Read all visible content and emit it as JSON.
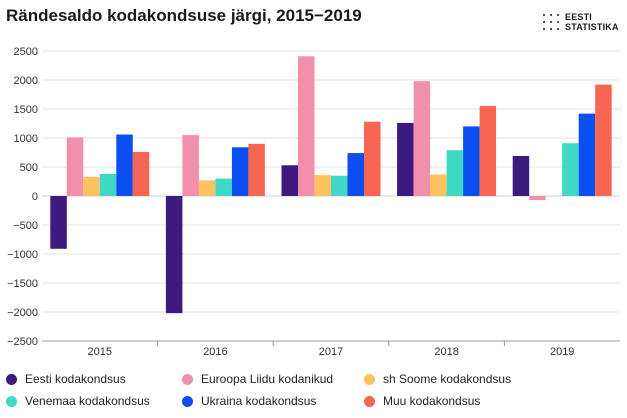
{
  "logo": {
    "line1": "EESTI",
    "line2": "STATISTIKA"
  },
  "chart_data": {
    "type": "bar",
    "title": "Rändesaldo kodakondsuse järgi, 2015−2019",
    "xlabel": "",
    "ylabel": "",
    "categories": [
      "2015",
      "2016",
      "2017",
      "2018",
      "2019"
    ],
    "ylim": [
      -2500,
      2500
    ],
    "yticks": [
      -2500,
      -2000,
      -1500,
      -1000,
      -500,
      0,
      500,
      1000,
      1500,
      2000,
      2500
    ],
    "ytick_labels": [
      "−2500",
      "−2000",
      "−1500",
      "−1000",
      "−500",
      "0",
      "500",
      "1000",
      "1500",
      "2000",
      "2500"
    ],
    "grid": true,
    "legend_position": "bottom",
    "series": [
      {
        "name": "Eesti kodakondsus",
        "color": "#3d1a7d",
        "values": [
          -910,
          -2020,
          530,
          1260,
          690
        ]
      },
      {
        "name": "Euroopa Liidu kodanikud",
        "color": "#f28fab",
        "values": [
          1010,
          1050,
          2410,
          1980,
          -70
        ]
      },
      {
        "name": "sh Soome kodakondsus",
        "color": "#ffc25c",
        "values": [
          330,
          270,
          360,
          370,
          0
        ]
      },
      {
        "name": "Venemaa kodakondsus",
        "color": "#3fd8c5",
        "values": [
          380,
          300,
          350,
          790,
          910
        ]
      },
      {
        "name": "Ukraina kodakondsus",
        "color": "#0b4ff0",
        "values": [
          1060,
          840,
          740,
          1200,
          1420
        ]
      },
      {
        "name": "Muu kodakondsus",
        "color": "#f76553",
        "values": [
          760,
          900,
          1280,
          1550,
          1920
        ]
      }
    ]
  }
}
